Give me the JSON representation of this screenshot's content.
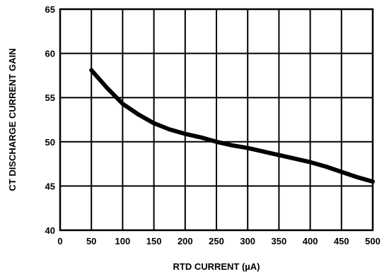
{
  "chart_data": {
    "type": "line",
    "title": "",
    "xlabel": "RTD CURRENT (µA)",
    "ylabel": "CT DISCHARGE CURRENT GAIN",
    "xlim": [
      0,
      500
    ],
    "ylim": [
      40,
      65
    ],
    "x_ticks": [
      "0",
      "50",
      "100",
      "150",
      "200",
      "250",
      "300",
      "350",
      "400",
      "450",
      "500"
    ],
    "y_ticks": [
      "40",
      "45",
      "50",
      "55",
      "60",
      "65"
    ],
    "grid": true,
    "legend": "none",
    "series": [
      {
        "x": [
          50,
          75,
          100,
          125,
          150,
          175,
          200,
          225,
          250,
          275,
          300,
          325,
          350,
          375,
          400,
          425,
          450,
          475,
          500
        ],
        "values": [
          58.1,
          56.1,
          54.3,
          53.1,
          52.1,
          51.4,
          50.9,
          50.5,
          50.0,
          49.6,
          49.3,
          48.9,
          48.5,
          48.1,
          47.7,
          47.2,
          46.6,
          46.0,
          45.5
        ]
      }
    ]
  }
}
